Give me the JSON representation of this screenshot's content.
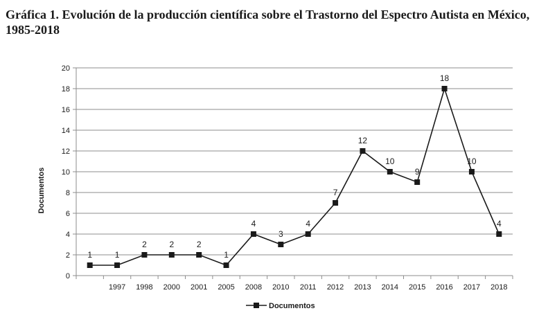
{
  "chart_data": {
    "type": "line",
    "title": "Gráfica 1. Evolución de la producción científica sobre el Trastorno del Espectro Autista en México, 1985-2018",
    "xlabel": "",
    "ylabel": "Documentos",
    "ylim": [
      0,
      20
    ],
    "yticks": [
      0,
      2,
      4,
      6,
      8,
      10,
      12,
      14,
      16,
      18,
      20
    ],
    "categories": [
      "",
      "1997",
      "1998",
      "2000",
      "2001",
      "2005",
      "2008",
      "2010",
      "2011",
      "2012",
      "2013",
      "2014",
      "2015",
      "2016",
      "2017",
      "2018"
    ],
    "series": [
      {
        "name": "Documentos",
        "values": [
          1,
          1,
          2,
          2,
          2,
          1,
          4,
          3,
          4,
          7,
          12,
          10,
          9,
          18,
          10,
          4
        ]
      }
    ],
    "grid": "horizontal",
    "legend_position": "bottom",
    "colors": {
      "line": "#1a1a1a",
      "marker": "#1a1a1a",
      "grid": "#8c8c8c",
      "axis": "#8c8c8c"
    }
  }
}
